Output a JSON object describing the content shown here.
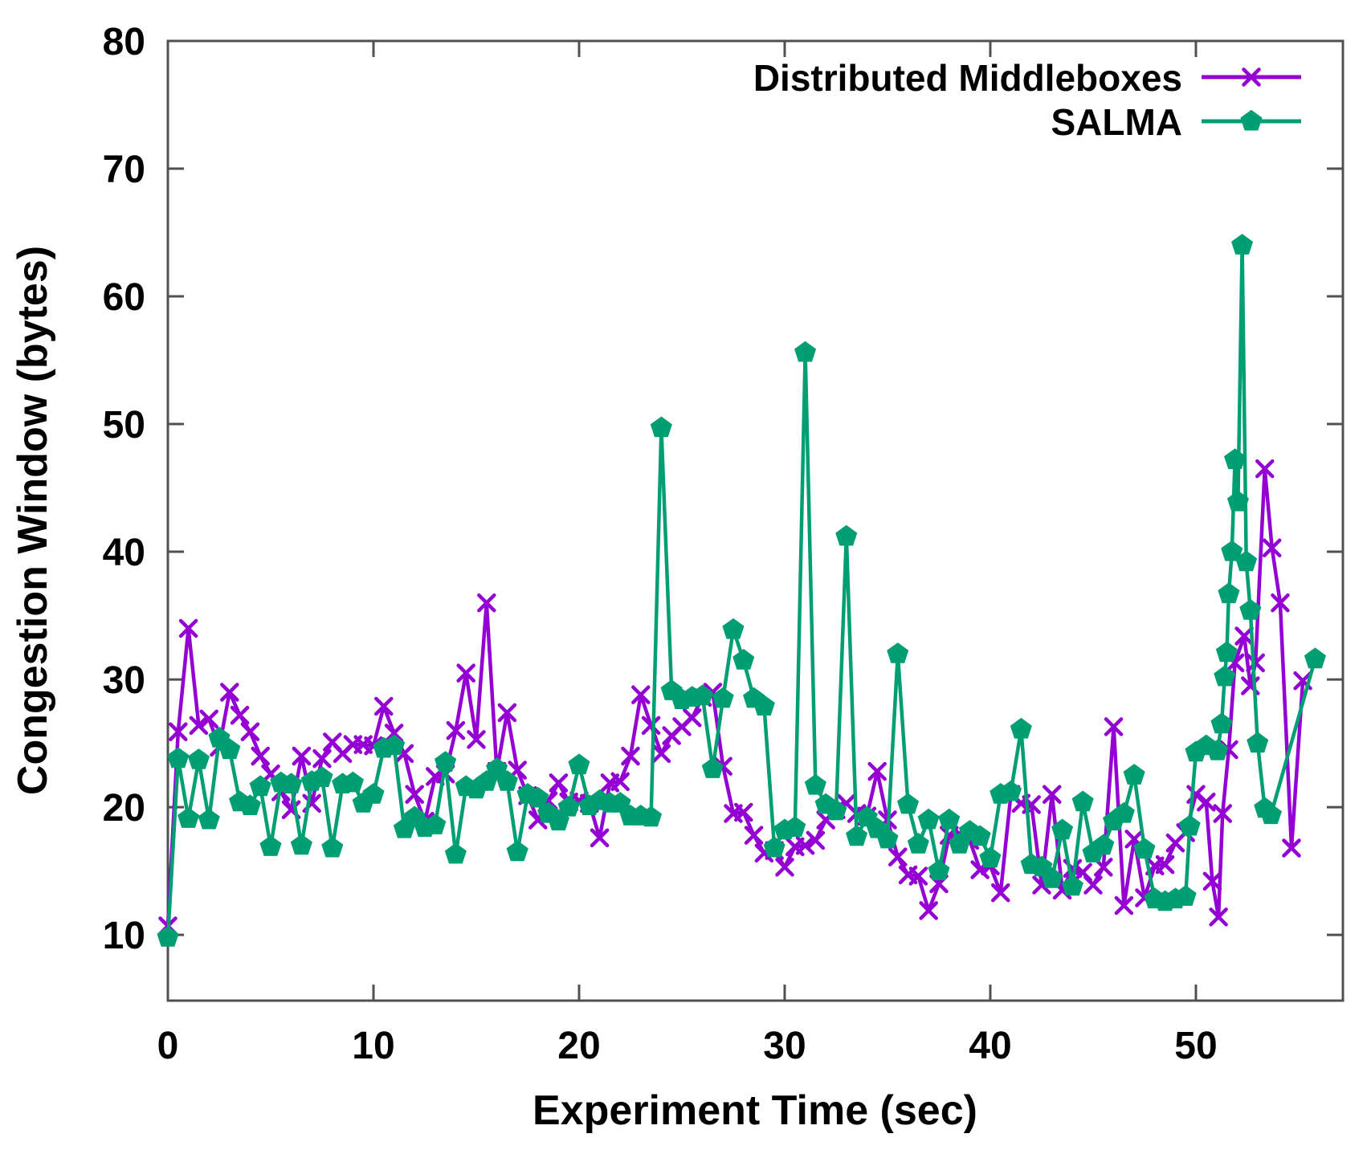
{
  "figure": {
    "background": "#ffffff",
    "border_color": "#505050",
    "text_color": "#000000"
  },
  "chart_data": {
    "type": "line",
    "title": "",
    "xlabel": "Experiment Time (sec)",
    "ylabel": "Congestion Window (bytes)",
    "xlim": [
      0,
      57.15
    ],
    "ylim": [
      4.85,
      80
    ],
    "xticks": [
      0,
      10,
      20,
      30,
      40,
      50
    ],
    "yticks": [
      10,
      20,
      30,
      40,
      50,
      60,
      70,
      80
    ],
    "grid": false,
    "legend_position": "top-right-inside",
    "series": [
      {
        "name": "Distributed Middleboxes",
        "color": "#9400D3",
        "marker": "cross",
        "points": [
          [
            0,
            10.7
          ],
          [
            0.5,
            25.9
          ],
          [
            1,
            34
          ],
          [
            1.5,
            26.4
          ],
          [
            2,
            26.9
          ],
          [
            2.5,
            24.7
          ],
          [
            3,
            29
          ],
          [
            3.5,
            27.2
          ],
          [
            4,
            25.9
          ],
          [
            4.5,
            24
          ],
          [
            5,
            22.6
          ],
          [
            5.5,
            21.2
          ],
          [
            6,
            19.8
          ],
          [
            6.5,
            24
          ],
          [
            7,
            20.3
          ],
          [
            7.5,
            23.8
          ],
          [
            8,
            25.1
          ],
          [
            8.5,
            24.2
          ],
          [
            9,
            24.9
          ],
          [
            9.5,
            24.9
          ],
          [
            10,
            24.8
          ],
          [
            10.5,
            27.9
          ],
          [
            11,
            25.8
          ],
          [
            11.5,
            24.2
          ],
          [
            12,
            21
          ],
          [
            12.5,
            18.9
          ],
          [
            13,
            22.4
          ],
          [
            13.5,
            22.6
          ],
          [
            14,
            26
          ],
          [
            14.5,
            30.5
          ],
          [
            15,
            25.3
          ],
          [
            15.5,
            36
          ],
          [
            16,
            22.8
          ],
          [
            16.5,
            27.4
          ],
          [
            17,
            22.9
          ],
          [
            17.5,
            20.9
          ],
          [
            18,
            19
          ],
          [
            18.5,
            20.5
          ],
          [
            19,
            21.9
          ],
          [
            19.5,
            20.4
          ],
          [
            20,
            20.5
          ],
          [
            20.5,
            20.3
          ],
          [
            21,
            17.6
          ],
          [
            21.5,
            21.9
          ],
          [
            22,
            22
          ],
          [
            22.5,
            24
          ],
          [
            23,
            28.8
          ],
          [
            23.5,
            26.4
          ],
          [
            24,
            24.2
          ],
          [
            24.5,
            25.6
          ],
          [
            25,
            26.3
          ],
          [
            25.5,
            27
          ],
          [
            26,
            28.6
          ],
          [
            26.5,
            29
          ],
          [
            27,
            23.2
          ],
          [
            27.5,
            19.5
          ],
          [
            28,
            19.6
          ],
          [
            28.5,
            17.8
          ],
          [
            29,
            16.4
          ],
          [
            29.5,
            16.6
          ],
          [
            30,
            15.3
          ],
          [
            30.5,
            16.9
          ],
          [
            31,
            17
          ],
          [
            31.5,
            17.4
          ],
          [
            32,
            19
          ],
          [
            32.5,
            19.8
          ],
          [
            33,
            20.3
          ],
          [
            33.5,
            19.5
          ],
          [
            34,
            19.3
          ],
          [
            34.5,
            22.8
          ],
          [
            35,
            19
          ],
          [
            35.5,
            16.1
          ],
          [
            36,
            14.7
          ],
          [
            36.5,
            14.6
          ],
          [
            37,
            11.9
          ],
          [
            37.5,
            14
          ],
          [
            38,
            17.8
          ],
          [
            38.5,
            17.9
          ],
          [
            39,
            17.4
          ],
          [
            39.5,
            15.1
          ],
          [
            40,
            15.4
          ],
          [
            40.5,
            13.3
          ],
          [
            41,
            21
          ],
          [
            41.5,
            20.3
          ],
          [
            42,
            20.2
          ],
          [
            42.5,
            13.9
          ],
          [
            43,
            21
          ],
          [
            43.5,
            13.5
          ],
          [
            44,
            15.2
          ],
          [
            44.5,
            14.9
          ],
          [
            45,
            13.9
          ],
          [
            45.5,
            15.3
          ],
          [
            46,
            26.3
          ],
          [
            46.5,
            12.3
          ],
          [
            47,
            17.5
          ],
          [
            47.5,
            12.9
          ],
          [
            48,
            15.4
          ],
          [
            48.5,
            15.5
          ],
          [
            49,
            17.2
          ],
          [
            49.5,
            18
          ],
          [
            50,
            21
          ],
          [
            50.5,
            20.4
          ],
          [
            50.8,
            14.2
          ],
          [
            51.1,
            11.4
          ],
          [
            51.3,
            19.5
          ],
          [
            51.6,
            24.5
          ],
          [
            51.9,
            31.3
          ],
          [
            52.35,
            33.4
          ],
          [
            52.65,
            29.5
          ],
          [
            52.9,
            31.3
          ],
          [
            53.35,
            46.5
          ],
          [
            53.7,
            40.3
          ],
          [
            54.1,
            36
          ],
          [
            54.65,
            16.8
          ],
          [
            55.2,
            29.9
          ]
        ]
      },
      {
        "name": "SALMA",
        "color": "#009E73",
        "marker": "pentagon",
        "points": [
          [
            0,
            9.8
          ],
          [
            0.5,
            23.8
          ],
          [
            1,
            19.1
          ],
          [
            1.5,
            23.7
          ],
          [
            2,
            19
          ],
          [
            2.5,
            25.4
          ],
          [
            3,
            24.5
          ],
          [
            3.5,
            20.4
          ],
          [
            4,
            20.1
          ],
          [
            4.5,
            21.6
          ],
          [
            5,
            16.9
          ],
          [
            5.5,
            21.9
          ],
          [
            6,
            21.8
          ],
          [
            6.5,
            17
          ],
          [
            7,
            22
          ],
          [
            7.5,
            22.3
          ],
          [
            8,
            16.8
          ],
          [
            8.5,
            21.8
          ],
          [
            9,
            21.9
          ],
          [
            9.5,
            20.3
          ],
          [
            10,
            21
          ],
          [
            10.5,
            24.6
          ],
          [
            11,
            24.8
          ],
          [
            11.5,
            18.3
          ],
          [
            12,
            19.2
          ],
          [
            12.5,
            18.4
          ],
          [
            13,
            18.6
          ],
          [
            13.5,
            23.5
          ],
          [
            14,
            16.3
          ],
          [
            14.5,
            21.6
          ],
          [
            15,
            21.4
          ],
          [
            15.5,
            22
          ],
          [
            16,
            23
          ],
          [
            16.5,
            22
          ],
          [
            17,
            16.5
          ],
          [
            17.5,
            21
          ],
          [
            18,
            20.7
          ],
          [
            18.5,
            19.5
          ],
          [
            19,
            18.9
          ],
          [
            19.5,
            20
          ],
          [
            20,
            23.3
          ],
          [
            20.5,
            20.1
          ],
          [
            21,
            20.5
          ],
          [
            21.5,
            20.3
          ],
          [
            22,
            20.3
          ],
          [
            22.5,
            19.3
          ],
          [
            23,
            19.3
          ],
          [
            23.5,
            19.2
          ],
          [
            24,
            49.7
          ],
          [
            24.5,
            29.1
          ],
          [
            25,
            28.4
          ],
          [
            25.5,
            28.6
          ],
          [
            26,
            28.7
          ],
          [
            26.5,
            23
          ],
          [
            27,
            28.5
          ],
          [
            27.5,
            33.9
          ],
          [
            28,
            31.5
          ],
          [
            28.5,
            28.5
          ],
          [
            29,
            27.9
          ],
          [
            29.5,
            16.8
          ],
          [
            30,
            18.2
          ],
          [
            30.5,
            18.4
          ],
          [
            31,
            55.6
          ],
          [
            31.5,
            21.7
          ],
          [
            32,
            20.2
          ],
          [
            32.5,
            19.7
          ],
          [
            33,
            41.2
          ],
          [
            33.5,
            17.7
          ],
          [
            34,
            19.2
          ],
          [
            34.5,
            18.3
          ],
          [
            35,
            17.5
          ],
          [
            35.5,
            32
          ],
          [
            36,
            20.2
          ],
          [
            36.5,
            17.1
          ],
          [
            37,
            19
          ],
          [
            37.5,
            15
          ],
          [
            38,
            19
          ],
          [
            38.5,
            17.1
          ],
          [
            39,
            18.1
          ],
          [
            39.5,
            17.7
          ],
          [
            40,
            16
          ],
          [
            40.5,
            21
          ],
          [
            41,
            21.2
          ],
          [
            41.5,
            26.1
          ],
          [
            42,
            15.5
          ],
          [
            42.5,
            15.3
          ],
          [
            43,
            14.4
          ],
          [
            43.5,
            18.2
          ],
          [
            44,
            13.8
          ],
          [
            44.5,
            20.4
          ],
          [
            45,
            16.4
          ],
          [
            45.5,
            17
          ],
          [
            46,
            18.9
          ],
          [
            46.5,
            19.5
          ],
          [
            47,
            22.5
          ],
          [
            47.5,
            16.7
          ],
          [
            48,
            12.8
          ],
          [
            48.5,
            12.6
          ],
          [
            49,
            12.8
          ],
          [
            49.5,
            13
          ],
          [
            49.7,
            18.5
          ],
          [
            50,
            24.3
          ],
          [
            50.5,
            24.8
          ],
          [
            51.05,
            24.4
          ],
          [
            51.25,
            26.5
          ],
          [
            51.4,
            30.2
          ],
          [
            51.5,
            32.1
          ],
          [
            51.6,
            36.7
          ],
          [
            51.75,
            40
          ],
          [
            51.9,
            47.2
          ],
          [
            52.05,
            43.9
          ],
          [
            52.25,
            64
          ],
          [
            52.45,
            39.2
          ],
          [
            52.65,
            35.4
          ],
          [
            53,
            25
          ],
          [
            53.35,
            19.9
          ],
          [
            53.65,
            19.4
          ],
          [
            55.8,
            31.6
          ]
        ]
      }
    ]
  }
}
